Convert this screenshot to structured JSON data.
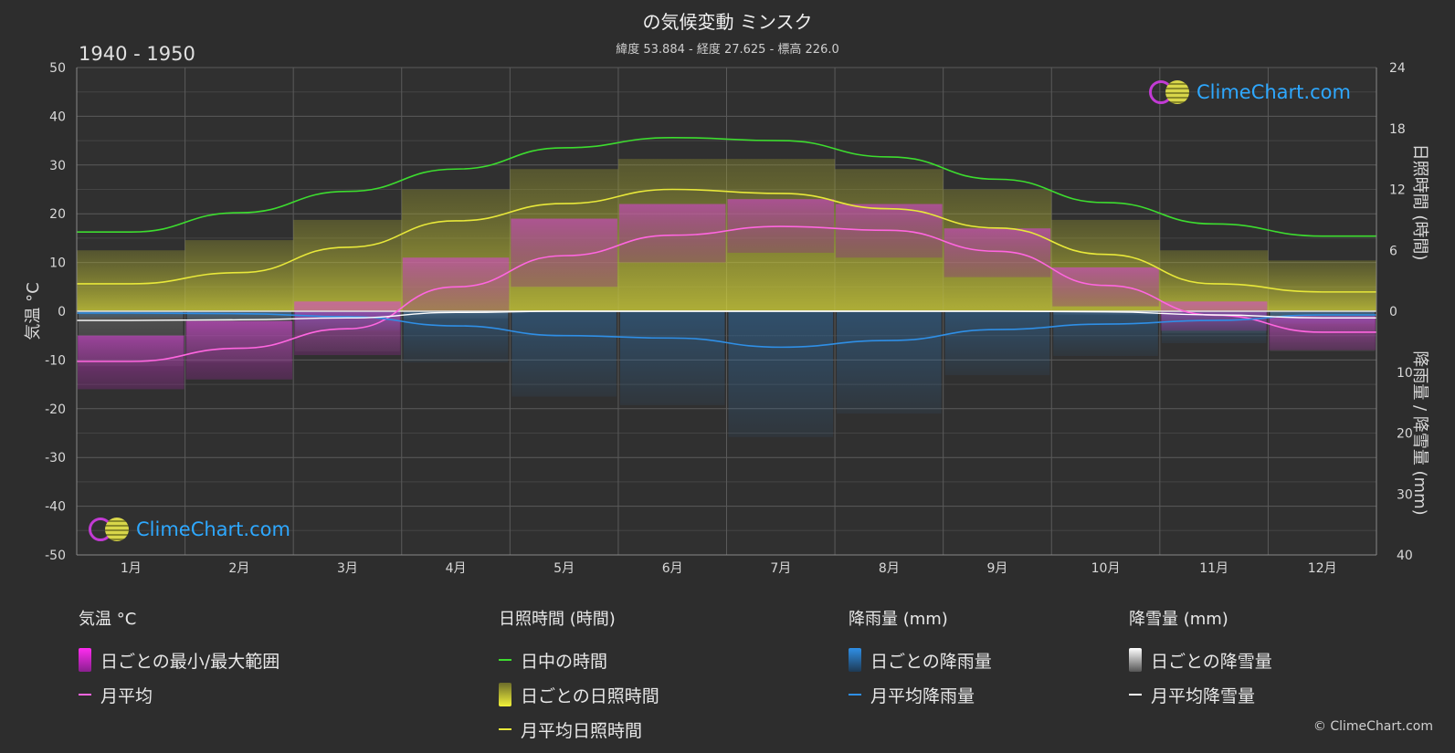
{
  "title": "の気候変動 ミンスク",
  "subtitle": "緯度 53.884 - 経度 27.625 - 標高 226.0",
  "period": "1940 - 1950",
  "copyright": "© ClimeChart.com",
  "logo_text": "ClimeChart.com",
  "colors": {
    "background": "#2d2d2d",
    "daylight": "#3ddc2f",
    "sunshine": "#e8e83a",
    "temp_mean": "#ff66e0",
    "temp_range": "#c229c8",
    "rain": "#2f8fe6",
    "snow": "#ffffff"
  },
  "chart_data": {
    "type": "line",
    "categories": [
      "1月",
      "2月",
      "3月",
      "4月",
      "5月",
      "6月",
      "7月",
      "8月",
      "9月",
      "10月",
      "11月",
      "12月"
    ],
    "left_axis": {
      "label": "気温 °C",
      "range": [
        -50,
        50
      ],
      "ticks": [
        "50",
        "40",
        "30",
        "20",
        "10",
        "0",
        "-10",
        "-20",
        "-30",
        "-40",
        "-50"
      ]
    },
    "right_axis_top": {
      "label": "日照時間 (時間)",
      "range": [
        0,
        24
      ],
      "ticks": [
        "24",
        "18",
        "12",
        "6",
        "0"
      ]
    },
    "right_axis_bottom": {
      "label": "降雨量 / 降雪量 (mm)",
      "range": [
        0,
        40
      ],
      "ticks": [
        "10",
        "20",
        "30",
        "40"
      ]
    },
    "grid": true,
    "series": [
      {
        "name": "日中の時間",
        "axis": "hours",
        "values": [
          7.8,
          9.7,
          11.8,
          14.0,
          16.1,
          17.1,
          16.8,
          15.2,
          13.0,
          10.7,
          8.6,
          7.4
        ]
      },
      {
        "name": "月平均日照時間",
        "axis": "hours",
        "values": [
          2.7,
          3.8,
          6.3,
          8.9,
          10.6,
          12.0,
          11.6,
          10.1,
          8.2,
          5.6,
          2.7,
          1.9
        ]
      },
      {
        "name": "月平均",
        "axis": "temp",
        "values": [
          -10.3,
          -7.6,
          -3.6,
          5.0,
          11.4,
          15.6,
          17.4,
          16.6,
          12.3,
          5.3,
          -0.8,
          -4.3
        ]
      },
      {
        "name": "月平均降雨量",
        "axis": "precip",
        "values": [
          0.3,
          0.4,
          0.9,
          2.4,
          4.0,
          4.4,
          5.9,
          4.8,
          3.0,
          2.1,
          1.5,
          0.6
        ]
      },
      {
        "name": "月平均降雪量",
        "axis": "precip",
        "values": [
          1.5,
          1.4,
          1.1,
          0.2,
          0.0,
          0.0,
          0.0,
          0.0,
          0.0,
          0.1,
          0.6,
          1.1
        ]
      }
    ],
    "daily_temp_range": {
      "name": "日ごとの最小/最大範囲",
      "min": [
        -16,
        -14,
        -9,
        0,
        5,
        10,
        12,
        11,
        7,
        1,
        -4,
        -8
      ],
      "max": [
        -5,
        -2,
        2,
        11,
        19,
        22,
        23,
        22,
        17,
        9,
        2,
        -1
      ]
    },
    "daily_sunshine": {
      "name": "日ごとの日照時間",
      "values": [
        6,
        7,
        9,
        12,
        14,
        15,
        15,
        14,
        12,
        9,
        6,
        5
      ]
    },
    "daily_rain": {
      "name": "日ごとの降雨量"
    },
    "daily_snow": {
      "name": "日ごとの降雪量"
    }
  },
  "legend": {
    "temp": {
      "heading": "気温 °C",
      "items": [
        "日ごとの最小/最大範囲",
        "月平均"
      ]
    },
    "sun": {
      "heading": "日照時間 (時間)",
      "items": [
        "日中の時間",
        "日ごとの日照時間",
        "月平均日照時間"
      ]
    },
    "rain": {
      "heading": "降雨量 (mm)",
      "items": [
        "日ごとの降雨量",
        "月平均降雨量"
      ]
    },
    "snow": {
      "heading": "降雪量 (mm)",
      "items": [
        "日ごとの降雪量",
        "月平均降雪量"
      ]
    }
  }
}
